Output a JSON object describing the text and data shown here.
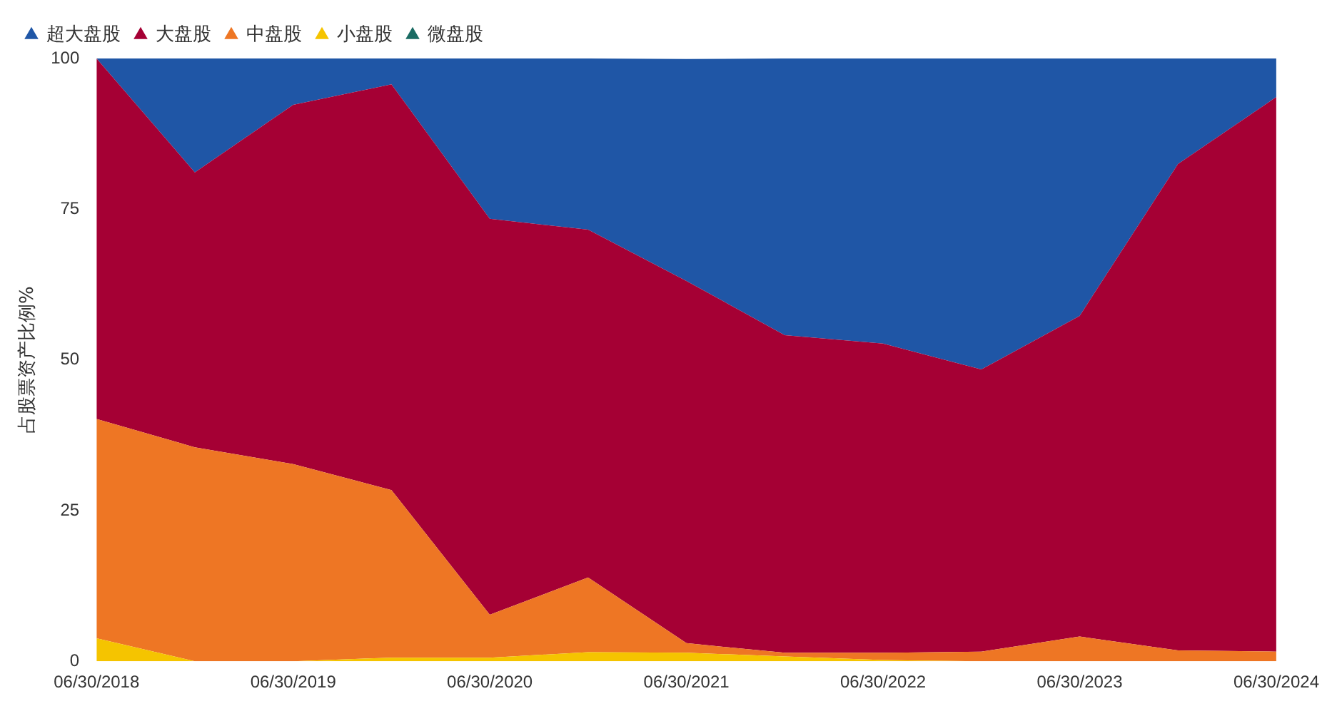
{
  "chart_data": {
    "type": "area",
    "stacked": true,
    "ylabel": "占股票资产比例%",
    "categories": [
      "06/30/2018",
      null,
      "06/30/2019",
      null,
      "06/30/2020",
      null,
      "06/30/2021",
      null,
      "06/30/2022",
      null,
      "06/30/2023",
      null,
      "06/30/2024"
    ],
    "series": [
      {
        "name": "微盘股",
        "color": "#1a6b63",
        "values": [
          null,
          null,
          null,
          null,
          null,
          null,
          null,
          null,
          null,
          null,
          null,
          null,
          null
        ]
      },
      {
        "name": "小盘股",
        "color": "#f5c400",
        "values": [
          3.8,
          0,
          0,
          0.6,
          0.6,
          1.5,
          1.4,
          0.8,
          0.2,
          0,
          0,
          0,
          0
        ]
      },
      {
        "name": "中盘股",
        "color": "#ee7624",
        "values": [
          36.4,
          35.5,
          32.7,
          27.8,
          7.1,
          12.4,
          1.6,
          0.6,
          1.2,
          1.6,
          4.1,
          1.8,
          1.6
        ]
      },
      {
        "name": "大盘股",
        "color": "#a50034",
        "values": [
          59.8,
          45.6,
          59.6,
          67.3,
          65.7,
          57.7,
          60.1,
          52.7,
          51.3,
          46.8,
          53.2,
          80.7,
          92.0
        ]
      },
      {
        "name": "超大盘股",
        "color": "#1f56a6",
        "values": [
          0,
          18.9,
          7.7,
          4.3,
          26.6,
          28.4,
          36.8,
          45.9,
          47.3,
          51.6,
          42.7,
          17.5,
          6.4
        ]
      }
    ],
    "ylim": [
      0,
      100
    ],
    "yticks": [
      0,
      25,
      50,
      75,
      100
    ],
    "grid": false,
    "legend": "top left"
  }
}
